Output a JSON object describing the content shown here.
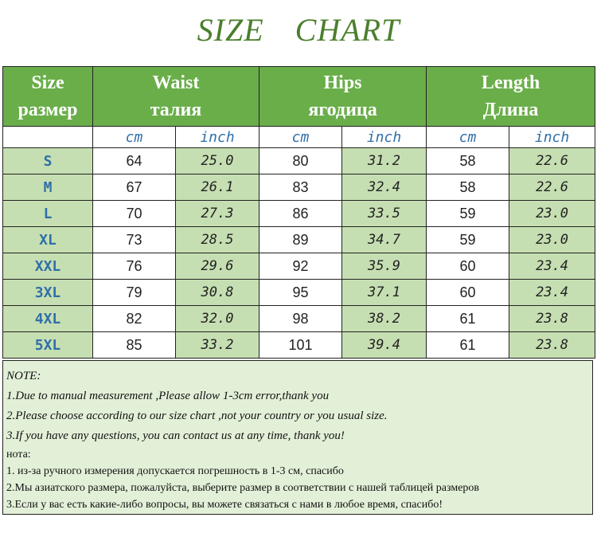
{
  "title": "SIZE CHART",
  "header": {
    "size": [
      "Size",
      "размер"
    ],
    "waist": [
      "Waist",
      "талия"
    ],
    "hips": [
      "Hips",
      "ягодица"
    ],
    "length": [
      "Length",
      "Длина"
    ]
  },
  "units": {
    "cm": "cm",
    "inch": "inch"
  },
  "rows": [
    {
      "size": "S",
      "waist_cm": "64",
      "waist_in": "25.0",
      "hips_cm": "80",
      "hips_in": "31.2",
      "length_cm": "58",
      "length_in": "22.6"
    },
    {
      "size": "M",
      "waist_cm": "67",
      "waist_in": "26.1",
      "hips_cm": "83",
      "hips_in": "32.4",
      "length_cm": "58",
      "length_in": "22.6"
    },
    {
      "size": "L",
      "waist_cm": "70",
      "waist_in": "27.3",
      "hips_cm": "86",
      "hips_in": "33.5",
      "length_cm": "59",
      "length_in": "23.0"
    },
    {
      "size": "XL",
      "waist_cm": "73",
      "waist_in": "28.5",
      "hips_cm": "89",
      "hips_in": "34.7",
      "length_cm": "59",
      "length_in": "23.0"
    },
    {
      "size": "XXL",
      "waist_cm": "76",
      "waist_in": "29.6",
      "hips_cm": "92",
      "hips_in": "35.9",
      "length_cm": "60",
      "length_in": "23.4"
    },
    {
      "size": "3XL",
      "waist_cm": "79",
      "waist_in": "30.8",
      "hips_cm": "95",
      "hips_in": "37.1",
      "length_cm": "60",
      "length_in": "23.4"
    },
    {
      "size": "4XL",
      "waist_cm": "82",
      "waist_in": "32.0",
      "hips_cm": "98",
      "hips_in": "38.2",
      "length_cm": "61",
      "length_in": "23.8"
    },
    {
      "size": "5XL",
      "waist_cm": "85",
      "waist_in": "33.2",
      "hips_cm": "101",
      "hips_in": "39.4",
      "length_cm": "61",
      "length_in": "23.8"
    }
  ],
  "notes": {
    "note_label": "NOTE:",
    "en": [
      "1.Due to manual measurement ,Please allow 1-3cm error,thank you",
      "2.Please choose according to our size chart ,not your country or you usual size.",
      "3.If you have any questions, you can contact us at any time, thank you!"
    ],
    "ru_label": "нота:",
    "ru": [
      "1. из-за ручного измерения допускается погрешность в 1-3 см, спасибо",
      "2.Мы азиатского размера, пожалуйста, выберите размер в соответствии с нашей таблицей размеров",
      "3.Если у вас есть какие-либо вопросы, вы можете связаться с нами в любое время, спасибо!"
    ]
  },
  "colors": {
    "title": "#4b7f2c",
    "header_bg": "#6aae4a",
    "light_green": "#c6dfb2",
    "unit_text": "#2f6fa8",
    "notes_bg": "#e3f0d8"
  }
}
